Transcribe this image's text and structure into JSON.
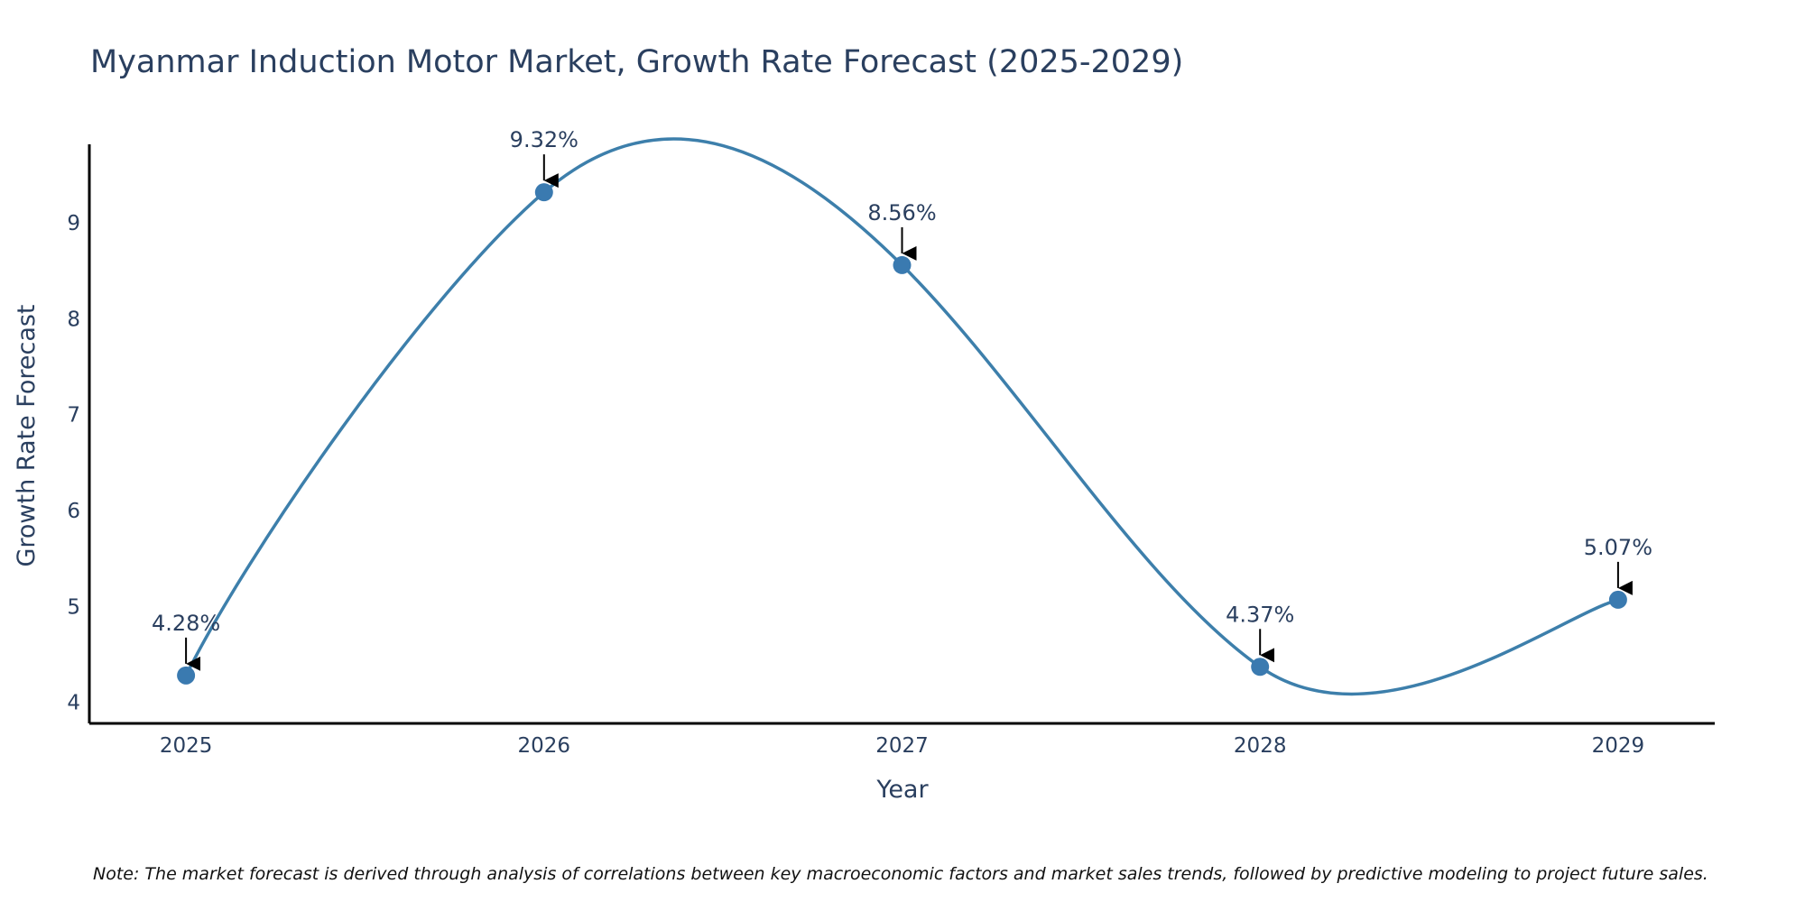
{
  "colors": {
    "line": "#3d7fab",
    "marker": "#3a7ab0",
    "axis": "#000000",
    "text": "#2a3f5f"
  },
  "chart_data": {
    "type": "line",
    "title": "Myanmar Induction Motor Market, Growth Rate Forecast (2025-2029)",
    "xlabel": "Year",
    "ylabel": "Growth Rate Forecast",
    "x": [
      "2025",
      "2026",
      "2027",
      "2028",
      "2029"
    ],
    "series": [
      {
        "name": "Growth Rate Forecast",
        "values": [
          4.28,
          9.32,
          8.56,
          4.37,
          5.07
        ]
      }
    ],
    "annotations": [
      "4.28%",
      "9.32%",
      "8.56%",
      "4.37%",
      "5.07%"
    ],
    "yticks": [
      4,
      5,
      6,
      7,
      8,
      9
    ],
    "ylim": [
      3.78,
      9.82
    ],
    "xlim": [
      -0.27,
      4.27
    ],
    "grid": false,
    "note": "Note: The market forecast is derived through analysis of correlations between key macroeconomic factors and market sales trends, followed by predictive modeling to project future sales."
  }
}
